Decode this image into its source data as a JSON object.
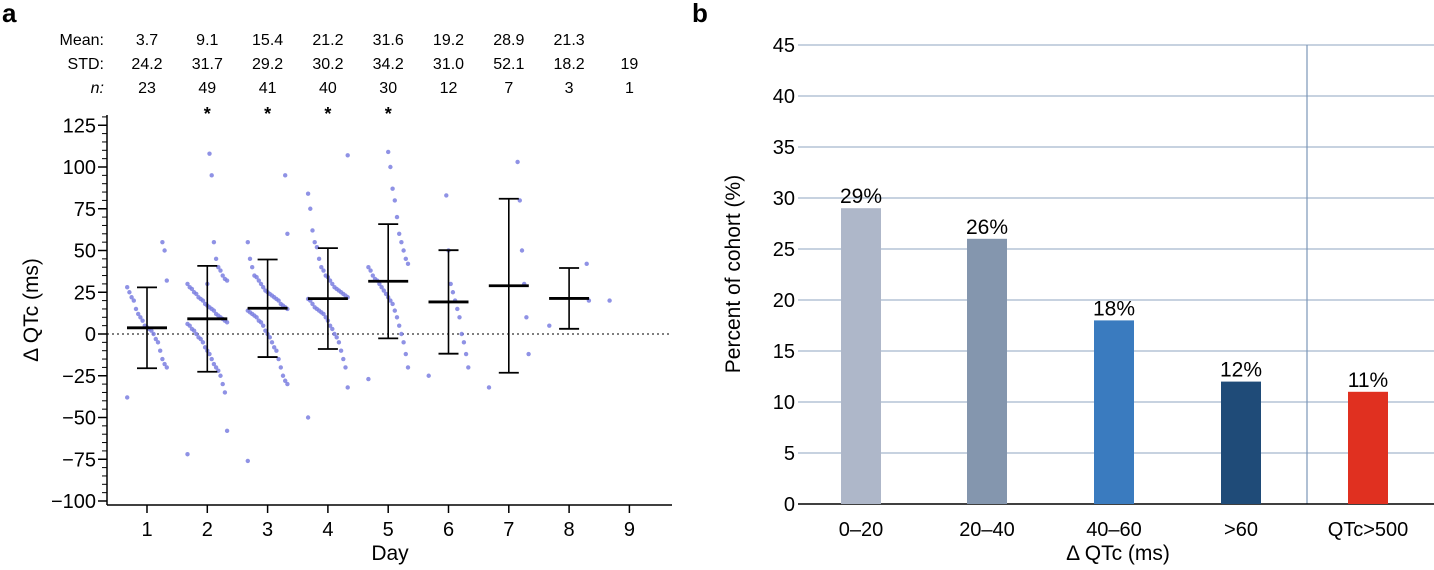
{
  "chart_data": [
    {
      "panel": "a",
      "type": "scatter",
      "xlabel": "Day",
      "ylabel": "Δ QTc (ms)",
      "ylim": [
        -100,
        130
      ],
      "yticks": [
        125,
        100,
        75,
        50,
        25,
        0,
        -25,
        -50,
        -75,
        -100
      ],
      "ytick_labels": [
        "125",
        "100",
        "75",
        "50",
        "25",
        "0",
        "−25",
        "−50",
        "−75",
        "−100"
      ],
      "categories": [
        "1",
        "2",
        "3",
        "4",
        "5",
        "6",
        "7",
        "8",
        "9"
      ],
      "stats_labels": {
        "mean": "Mean:",
        "std": "STD:",
        "n": "n:"
      },
      "stats": [
        {
          "day": "1",
          "mean": "3.7",
          "std": "24.2",
          "n": "23",
          "star": ""
        },
        {
          "day": "2",
          "mean": "9.1",
          "std": "31.7",
          "n": "49",
          "star": "*"
        },
        {
          "day": "3",
          "mean": "15.4",
          "std": "29.2",
          "n": "41",
          "star": "*"
        },
        {
          "day": "4",
          "mean": "21.2",
          "std": "30.2",
          "n": "40",
          "star": "*"
        },
        {
          "day": "5",
          "mean": "31.6",
          "std": "34.2",
          "n": "30",
          "star": "*"
        },
        {
          "day": "6",
          "mean": "19.2",
          "std": "31.0",
          "n": "12",
          "star": ""
        },
        {
          "day": "7",
          "mean": "28.9",
          "std": "52.1",
          "n": "7",
          "star": ""
        },
        {
          "day": "8",
          "mean": "21.3",
          "std": "18.2",
          "n": "3",
          "star": ""
        },
        {
          "day": "9",
          "mean": "",
          "std": "19",
          "n": "1",
          "star": ""
        }
      ],
      "points": [
        [
          -38,
          -20,
          -18,
          -15,
          -10,
          -5,
          -3,
          0,
          2,
          3,
          4,
          5,
          8,
          10,
          12,
          15,
          20,
          22,
          25,
          28,
          32,
          50,
          55
        ],
        [
          -72,
          -58,
          -35,
          -30,
          -25,
          -22,
          -20,
          -18,
          -15,
          -12,
          -10,
          -8,
          -5,
          -3,
          -2,
          0,
          2,
          3,
          5,
          6,
          7,
          8,
          9,
          10,
          11,
          12,
          14,
          15,
          16,
          17,
          18,
          20,
          21,
          22,
          24,
          25,
          27,
          28,
          30,
          32,
          33,
          35,
          38,
          40,
          45,
          55,
          95,
          108,
          30
        ],
        [
          -76,
          -30,
          -28,
          -25,
          -20,
          -15,
          -10,
          -8,
          -5,
          -2,
          0,
          2,
          5,
          7,
          8,
          10,
          11,
          12,
          13,
          14,
          15,
          16,
          17,
          18,
          20,
          21,
          22,
          23,
          24,
          25,
          26,
          28,
          30,
          32,
          34,
          35,
          40,
          45,
          55,
          60,
          95
        ],
        [
          -50,
          -32,
          -20,
          -15,
          -10,
          -5,
          -2,
          0,
          3,
          5,
          8,
          10,
          12,
          13,
          14,
          15,
          16,
          18,
          20,
          21,
          22,
          23,
          24,
          25,
          26,
          27,
          28,
          30,
          32,
          34,
          35,
          38,
          40,
          45,
          52,
          55,
          62,
          75,
          84,
          107
        ],
        [
          -27,
          -20,
          -12,
          -5,
          0,
          5,
          10,
          14,
          18,
          20,
          22,
          24,
          26,
          28,
          30,
          32,
          33,
          35,
          38,
          40,
          42,
          45,
          50,
          55,
          60,
          70,
          80,
          87,
          100,
          109
        ],
        [
          -25,
          -20,
          -12,
          -5,
          0,
          10,
          15,
          20,
          25,
          30,
          50,
          83
        ],
        [
          -32,
          -12,
          10,
          30,
          50,
          80,
          103
        ],
        [
          5,
          20,
          42
        ],
        [
          20
        ]
      ],
      "means": [
        3.7,
        9.1,
        15.4,
        21.2,
        31.6,
        19.2,
        28.9,
        21.3,
        null
      ],
      "sds": [
        24.2,
        31.7,
        29.2,
        30.2,
        34.2,
        31.0,
        52.1,
        18.2,
        null
      ]
    },
    {
      "panel": "b",
      "type": "bar",
      "xlabel": "Δ QTc (ms)",
      "ylabel": "Percent of cohort (%)",
      "ylim": [
        0,
        45
      ],
      "yticks": [
        "0",
        "5",
        "10",
        "15",
        "20",
        "25",
        "30",
        "35",
        "40",
        "45"
      ],
      "categories": [
        "0–20",
        "20–40",
        "40–60",
        ">60",
        "QTc>500"
      ],
      "values": [
        29,
        26,
        18,
        12,
        11
      ],
      "value_labels": [
        "29%",
        "26%",
        "18%",
        "12%",
        "11%"
      ],
      "colors": [
        "#aeb7c9",
        "#8496ae",
        "#3a7bbf",
        "#1f4b78",
        "#e03020"
      ],
      "grid": true,
      "divider_after_category": ">60"
    }
  ]
}
